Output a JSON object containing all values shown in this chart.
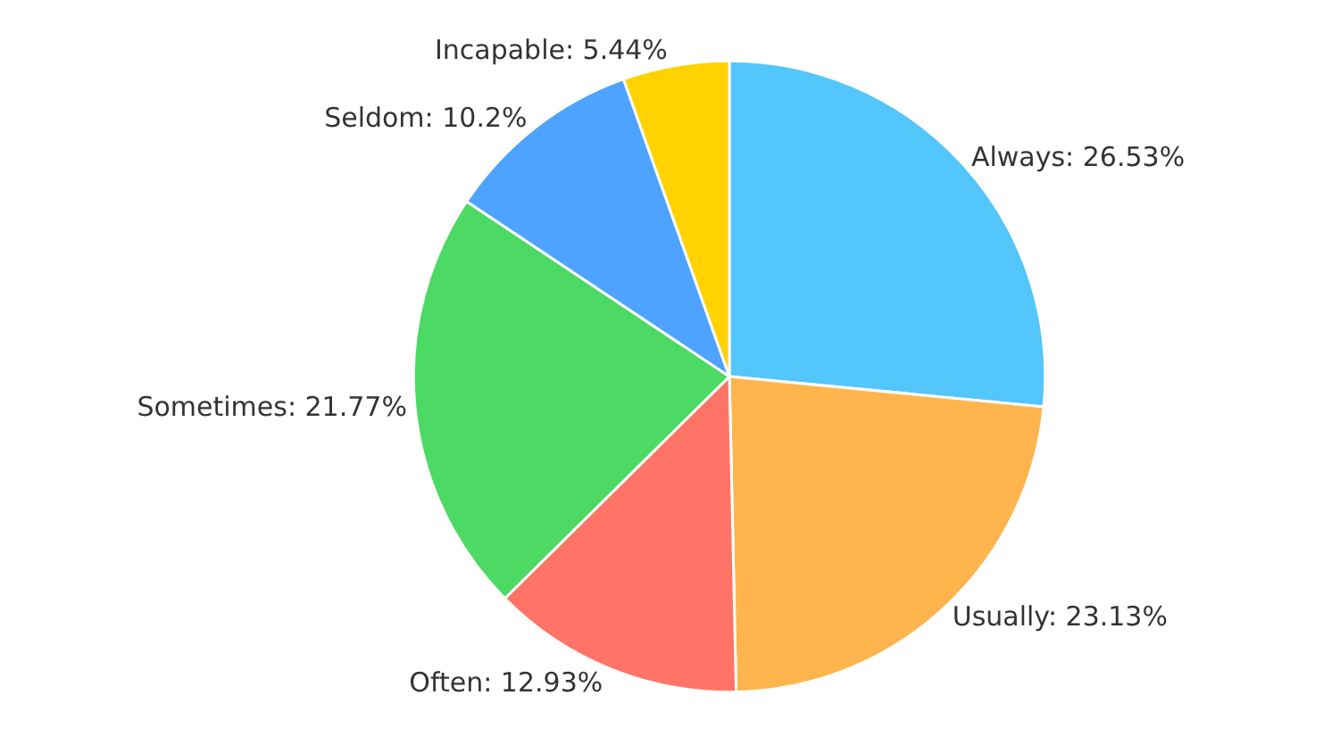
{
  "chart_data": {
    "type": "pie",
    "categories": [
      "Always",
      "Usually",
      "Often",
      "Sometimes",
      "Seldom",
      "Incapable"
    ],
    "values": [
      26.53,
      23.13,
      12.93,
      21.77,
      10.2,
      5.44
    ],
    "value_labels": [
      "26.53%",
      "23.13%",
      "12.93%",
      "21.77%",
      "10.2%",
      "5.44%"
    ],
    "colors": [
      "#53c6fb",
      "#ffb54d",
      "#ff7466",
      "#4cd964",
      "#4da3ff",
      "#ffd200"
    ],
    "legend": false
  }
}
